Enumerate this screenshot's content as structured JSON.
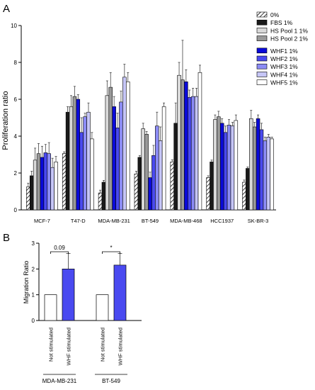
{
  "chart_data": [
    {
      "panel": "A",
      "type": "bar",
      "ylabel": "Proliferation ratio",
      "ylim": [
        0,
        10
      ],
      "yticks": [
        0,
        2,
        4,
        6,
        8,
        10
      ],
      "legend_placement": "top-right",
      "categories": [
        "MCF-7",
        "T47-D",
        "MDA-MB-231",
        "BT-549",
        "MDA-MB-468",
        "HCC1937",
        "SK-BR-3"
      ],
      "series": [
        {
          "name": "0%",
          "fill": "hatch",
          "color": "#ffffff",
          "values": [
            1.25,
            3.05,
            0.92,
            1.95,
            2.6,
            1.75,
            1.5
          ],
          "errors": [
            0.2,
            0.1,
            0.15,
            0.15,
            0.12,
            0.1,
            0.12
          ]
        },
        {
          "name": "FBS 1%",
          "color": "#1a1a1a",
          "values": [
            1.85,
            5.3,
            1.5,
            2.85,
            4.7,
            2.6,
            2.25
          ],
          "errors": [
            0.25,
            0.3,
            0.1,
            0.1,
            1.1,
            0.1,
            0.08
          ]
        },
        {
          "name": "HS Pool 1 1%",
          "color": "#d9d9d9",
          "values": [
            2.7,
            5.6,
            6.2,
            4.4,
            7.3,
            4.9,
            4.95
          ],
          "errors": [
            0.65,
            0.6,
            0.8,
            0.3,
            0.7,
            0.25,
            0.45
          ]
        },
        {
          "name": "HS Pool 2 1%",
          "color": "#999999",
          "values": [
            3.05,
            6.15,
            6.65,
            4.1,
            7.05,
            5.05,
            4.5
          ],
          "errors": [
            0.55,
            0.55,
            0.8,
            0.15,
            2.15,
            0.3,
            0.25
          ]
        },
        {
          "name": "WHF1 1%",
          "color": "#0a0ad9",
          "values": [
            2.85,
            6.0,
            5.6,
            1.75,
            6.95,
            4.7,
            4.95
          ],
          "errors": [
            0.6,
            0.25,
            0.55,
            0.3,
            0.65,
            0.25,
            0.2
          ]
        },
        {
          "name": "WHF2 1%",
          "color": "#4a4af0",
          "values": [
            3.1,
            4.2,
            4.45,
            2.95,
            6.1,
            4.2,
            4.35
          ],
          "errors": [
            0.45,
            0.8,
            0.8,
            0.55,
            0.4,
            0.35,
            0.35
          ]
        },
        {
          "name": "WHF3 1%",
          "color": "#8c8cf5",
          "values": [
            3.05,
            5.05,
            5.85,
            4.55,
            6.15,
            4.6,
            3.75
          ],
          "errors": [
            0.6,
            0.2,
            0.6,
            0.75,
            0.45,
            0.3,
            0.2
          ]
        },
        {
          "name": "WHF4 1%",
          "color": "#c6c6f7",
          "values": [
            2.3,
            5.3,
            7.2,
            3.75,
            6.15,
            4.55,
            3.95
          ],
          "errors": [
            0.5,
            0.5,
            0.7,
            0.75,
            0.45,
            0.2,
            0.15
          ]
        },
        {
          "name": "WHF5 1%",
          "color": "#ffffff",
          "values": [
            2.6,
            3.85,
            6.95,
            5.6,
            7.45,
            4.85,
            3.85
          ],
          "errors": [
            0.3,
            0.35,
            0.5,
            0.2,
            0.4,
            0.3,
            0.1
          ]
        }
      ]
    },
    {
      "panel": "B",
      "type": "bar",
      "ylabel": "Migration Ratio",
      "ylim": [
        0,
        3
      ],
      "yticks": [
        0,
        1,
        2,
        3
      ],
      "groups": [
        "MDA-MB-231",
        "BT-549"
      ],
      "categories": [
        "Not stimulated",
        "WHF stimulated",
        "Not stimulated",
        "WHF stimulated"
      ],
      "series": [
        {
          "values": [
            1.0,
            2.0,
            1.0,
            2.15
          ],
          "errors": [
            0,
            0.6,
            0,
            0.45
          ],
          "colors": [
            "#ffffff",
            "#4a4af0",
            "#ffffff",
            "#4a4af0"
          ]
        }
      ],
      "annotations": [
        {
          "label": "0.09",
          "between": [
            0,
            1
          ]
        },
        {
          "label": "*",
          "between": [
            2,
            3
          ]
        }
      ]
    }
  ],
  "panel_labels": {
    "a": "A",
    "b": "B"
  }
}
